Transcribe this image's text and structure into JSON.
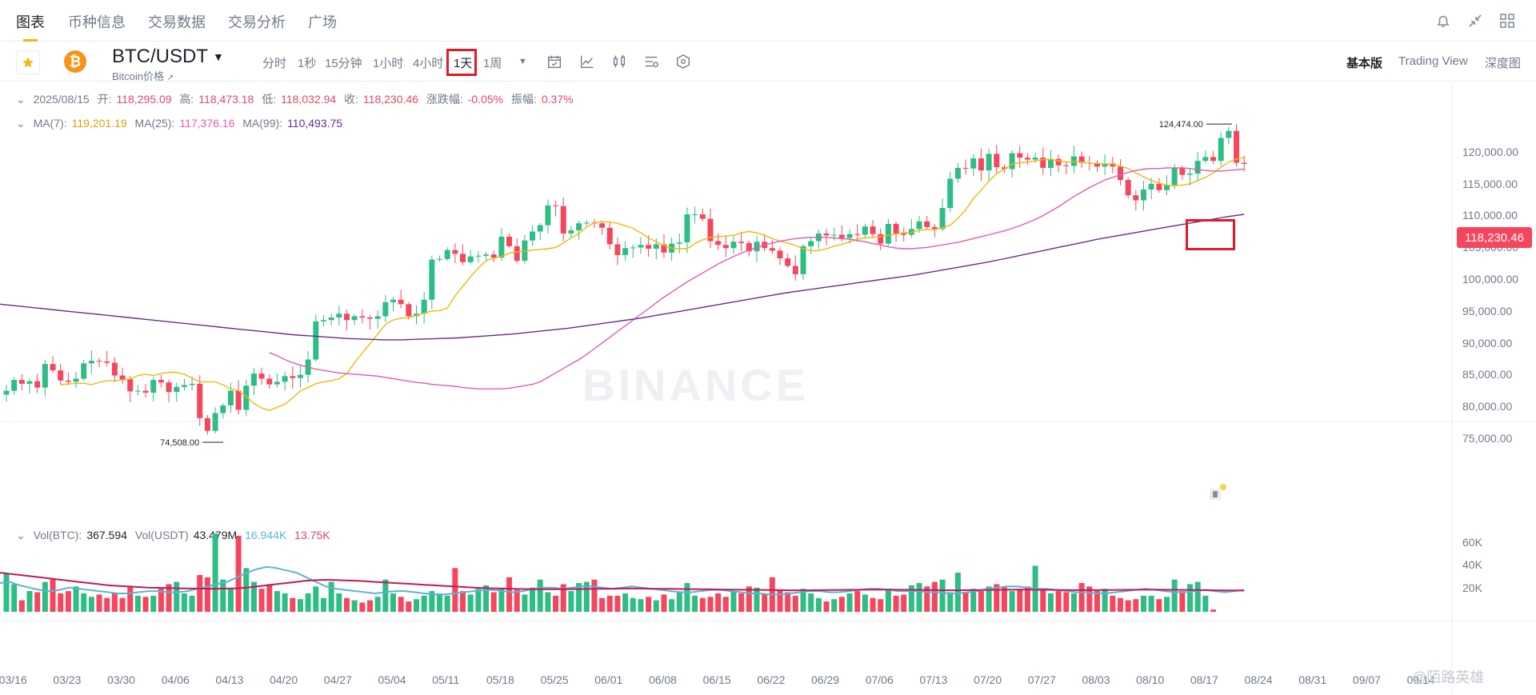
{
  "nav": {
    "tabs": [
      "图表",
      "币种信息",
      "交易数据",
      "交易分析",
      "广场"
    ],
    "active_tab": "图表",
    "icons": [
      "bell-icon",
      "collapse-icon",
      "grid-icon"
    ]
  },
  "symbol": {
    "pair": "BTC/USDT",
    "subtitle": "Bitcoin价格",
    "subtitle_arrow": "↗"
  },
  "intervals": [
    "分时",
    "1秒",
    "15分钟",
    "1小时",
    "4小时",
    "1天",
    "1周"
  ],
  "selected_interval": "1天",
  "views": [
    "基本版",
    "Trading View",
    "深度图"
  ],
  "selected_view": "基本版",
  "ohlc": {
    "date": "2025/08/15",
    "open_label": "开:",
    "open": "118,295.09",
    "high_label": "高:",
    "high": "118,473.18",
    "low_label": "低:",
    "low": "118,032.94",
    "close_label": "收:",
    "close": "118,230.46",
    "change_label": "涨跌幅:",
    "change": "-0.05%",
    "amp_label": "振幅:",
    "amp": "0.37%"
  },
  "ma": {
    "ma7_label": "MA(7):",
    "ma7": "119,201.19",
    "ma25_label": "MA(25):",
    "ma25": "117,376.16",
    "ma99_label": "MA(99):",
    "ma99": "110,493.75"
  },
  "vol": {
    "btc_label": "Vol(BTC):",
    "btc": "367.594",
    "usdt_label": "Vol(USDT)",
    "usdt": "43.479M",
    "v1": "16.944K",
    "v2": "13.75K"
  },
  "last_price": "118,230.46",
  "max_label": "124,474.00",
  "min_label": "74,508.00",
  "watermark": "BINANCE",
  "corner_watermark": "@陌路英雄",
  "colors": {
    "up": "#2ebd85",
    "down": "#f6465d",
    "ma7": "#f0b90b",
    "ma25": "#e05cb0",
    "ma99": "#6a2c8e",
    "vol_ma1": "#5bb5cf",
    "vol_ma2": "#c2185b",
    "accent": "#f0b90b",
    "highlight_box": "#e01a2b"
  },
  "chart_data": {
    "type": "candlestick",
    "y_ticks": [
      "120,000.00",
      "115,000.00",
      "110,000.00",
      "105,000.00",
      "100,000.00",
      "95,000.00",
      "90,000.00",
      "85,000.00",
      "80,000.00",
      "75,000.00"
    ],
    "vol_ticks": [
      "60K",
      "40K",
      "20K"
    ],
    "x_ticks": [
      "03/16",
      "03/23",
      "03/30",
      "04/06",
      "04/13",
      "04/20",
      "04/27",
      "05/04",
      "05/11",
      "05/18",
      "05/25",
      "06/01",
      "06/08",
      "06/15",
      "06/22",
      "06/29",
      "07/06",
      "07/13",
      "07/20",
      "07/27",
      "08/03",
      "08/10",
      "08/17",
      "08/24",
      "08/31",
      "09/07",
      "09/14"
    ],
    "ylim": [
      72000,
      126000
    ],
    "vol_ylim": [
      0,
      75000
    ],
    "closes": [
      82600,
      84300,
      83700,
      84100,
      83100,
      86800,
      85800,
      84200,
      84000,
      84500,
      86900,
      87300,
      87200,
      87000,
      85000,
      84400,
      82500,
      82600,
      82300,
      84300,
      83900,
      82400,
      83200,
      83500,
      83700,
      78300,
      76300,
      79100,
      80300,
      82600,
      79600,
      83400,
      85300,
      84500,
      83600,
      84000,
      84900,
      84600,
      85100,
      87500,
      93500,
      93700,
      94100,
      94700,
      93700,
      94300,
      94100,
      93900,
      94300,
      96500,
      96900,
      96200,
      94300,
      94700,
      96900,
      103200,
      103300,
      104700,
      104100,
      102800,
      103700,
      103800,
      104000,
      103500,
      106800,
      105300,
      103000,
      106200,
      107600,
      108600,
      111700,
      111600,
      107300,
      107800,
      108900,
      109000,
      108900,
      108200,
      105600,
      103900,
      105000,
      105100,
      105500,
      104900,
      105600,
      104300,
      105700,
      105900,
      110300,
      110300,
      109600,
      106100,
      105500,
      105000,
      106000,
      105800,
      104500,
      106000,
      105000,
      104600,
      103400,
      102200,
      100900,
      105300,
      106100,
      107300,
      107000,
      107100,
      106600,
      107200,
      107100,
      108400,
      107200,
      105700,
      108800,
      107300,
      107100,
      108000,
      109200,
      108300,
      108000,
      111300,
      115900,
      117600,
      117500,
      119100,
      117200,
      119800,
      117700,
      117400,
      119900,
      119200,
      118900,
      119200,
      117600,
      119000,
      118000,
      117900,
      119400,
      118400,
      118300,
      117800,
      118300,
      117800,
      115700,
      113300,
      112500,
      114200,
      115100,
      114100,
      114900,
      117600,
      116500,
      116700,
      118700,
      119300,
      118700,
      122300,
      123400,
      118400,
      118230
    ],
    "ma7": [
      83550,
      83662,
      83760,
      83780,
      83560,
      83916,
      84200,
      84200,
      84300,
      84434,
      85000,
      85200,
      85000,
      85300,
      85500,
      85500,
      85200,
      84600,
      84000,
      84000,
      84000,
      83500,
      82900,
      82600,
      81700,
      80600,
      79900,
      79500,
      80000,
      80500,
      81500,
      82600,
      83100,
      83700,
      84000,
      84200,
      84500,
      85300,
      87000,
      88500,
      90000,
      91500,
      93000,
      93700,
      94000,
      94100,
      94400,
      94800,
      95100,
      95200,
      95600,
      97500,
      99000,
      100500,
      101900,
      103000,
      103400,
      103700,
      104200,
      104400,
      104500,
      104700,
      104800,
      104900,
      105100,
      105800,
      106600,
      107300,
      108300,
      109000,
      109200,
      109100,
      108900,
      108500,
      108100,
      107400,
      106600,
      106000,
      105400,
      105000,
      104900,
      104900,
      105700,
      106300,
      106700,
      106800,
      106900,
      107000,
      107400,
      107600,
      107400,
      107000,
      106500,
      106100,
      105800,
      105400,
      104900,
      104600,
      104600,
      104900,
      105300,
      105600,
      106000,
      106400,
      106600,
      106700,
      106800,
      107000,
      107200,
      107400,
      107500,
      107800,
      107900,
      107900,
      108200,
      108600,
      109700,
      111000,
      112800,
      114100,
      115500,
      116700,
      117400,
      118200,
      118400,
      118500,
      118700,
      118900,
      118900,
      118700,
      118500,
      118600,
      118500,
      118300,
      118300,
      118200,
      118200,
      117900,
      117500,
      116800,
      116200,
      115600,
      115200,
      114900,
      114800,
      114900,
      115100,
      115600,
      116100,
      116800,
      117700,
      118500,
      119000,
      119200
    ],
    "ma25": [
      88600,
      88100,
      87500,
      87000,
      86600,
      86300,
      86000,
      85800,
      85600,
      85400,
      85300,
      85200,
      85100,
      85000,
      84900,
      84700,
      84500,
      84300,
      84100,
      83900,
      83800,
      83600,
      83500,
      83400,
      83300,
      83100,
      83000,
      82900,
      82900,
      82900,
      82900,
      83000,
      83200,
      83400,
      83600,
      84000,
      84700,
      85400,
      86100,
      86800,
      87500,
      88300,
      89200,
      90100,
      91000,
      91900,
      92800,
      93700,
      94600,
      95500,
      96400,
      97300,
      98100,
      98900,
      99700,
      100400,
      101100,
      101800,
      102500,
      103100,
      103700,
      104200,
      104700,
      105100,
      105500,
      105800,
      106100,
      106300,
      106500,
      106600,
      106700,
      106700,
      106700,
      106600,
      106500,
      106400,
      106200,
      106000,
      105700,
      105500,
      105200,
      105000,
      104900,
      104900,
      105000,
      105100,
      105300,
      105500,
      105700,
      105900,
      106200,
      106500,
      106800,
      107100,
      107400,
      107700,
      108100,
      108500,
      109000,
      109500,
      110100,
      110800,
      111500,
      112300,
      113100,
      113800,
      114500,
      115100,
      115700,
      116100,
      116500,
      116900,
      117200,
      117400,
      117500,
      117500,
      117600,
      117600,
      117600,
      117500,
      117300,
      117200,
      117100,
      117100,
      117200,
      117300,
      117400
    ],
    "ma99": [
      96200,
      95900,
      95600,
      95300,
      95000,
      94700,
      94400,
      94100,
      93800,
      93500,
      93200,
      92900,
      92600,
      92300,
      92000,
      91700,
      91400,
      91200,
      91000,
      90800,
      90700,
      90600,
      90600,
      90700,
      90800,
      90900,
      91100,
      91300,
      91500,
      91800,
      92100,
      92400,
      92800,
      93200,
      93600,
      94000,
      94500,
      95000,
      95500,
      96000,
      96500,
      97000,
      97500,
      98000,
      98400,
      98800,
      99200,
      99600,
      100000,
      100400,
      100800,
      101300,
      101800,
      102300,
      102800,
      103400,
      104000,
      104600,
      105200,
      105800,
      106400,
      106900,
      107400,
      107900,
      108400,
      108900,
      109400,
      109900,
      110300
    ],
    "volumes": [
      33000,
      24000,
      10000,
      18000,
      17000,
      26000,
      28000,
      16000,
      18000,
      22000,
      16000,
      13000,
      15000,
      12000,
      16000,
      12000,
      22000,
      14000,
      13000,
      14000,
      20000,
      24000,
      26000,
      16000,
      14000,
      32000,
      30000,
      68000,
      28000,
      20000,
      66000,
      38000,
      26000,
      20000,
      24000,
      18000,
      16000,
      12000,
      11000,
      16000,
      22000,
      12000,
      26000,
      16000,
      12000,
      10000,
      8000,
      10000,
      13000,
      28000,
      16000,
      13000,
      9000,
      11000,
      14000,
      18000,
      16000,
      14000,
      38000,
      18000,
      15000,
      20000,
      23000,
      17000,
      20000,
      30000,
      19000,
      15000,
      21000,
      28000,
      17000,
      14000,
      24000,
      18000,
      25000,
      26000,
      28000,
      12000,
      14000,
      14000,
      16000,
      12000,
      11000,
      13000,
      10000,
      15000,
      11000,
      17000,
      25000,
      14000,
      12000,
      13000,
      16000,
      13000,
      18000,
      16000,
      22000,
      21000,
      16000,
      30000,
      19000,
      17000,
      14000,
      20000,
      16000,
      12000,
      9000,
      11000,
      13000,
      16000,
      18000,
      15000,
      12000,
      11000,
      20000,
      14000,
      15000,
      23000,
      25000,
      22000,
      26000,
      28000,
      17000,
      34000,
      17000,
      20000,
      18000,
      22000,
      24000,
      22000,
      18000,
      20000,
      22000,
      40000,
      20000,
      16000,
      18000,
      17000,
      16000,
      25000,
      22000,
      18000,
      20000,
      14000,
      12000,
      10000,
      11000,
      14000,
      14000,
      11000,
      13000,
      28000,
      18000,
      24000,
      26000,
      14000,
      2000
    ],
    "vol_ma1": [
      25000,
      26000,
      23000,
      21000,
      19000,
      18000,
      19000,
      21000,
      20000,
      19000,
      18000,
      17000,
      16000,
      16000,
      17000,
      18000,
      18000,
      17000,
      17000,
      18000,
      20000,
      22000,
      24000,
      26000,
      30000,
      34000,
      37000,
      39000,
      38000,
      36000,
      34000,
      30000,
      26000,
      22000,
      20000,
      19000,
      18000,
      17000,
      16000,
      17000,
      18000,
      18000,
      17000,
      16000,
      15000,
      15000,
      16000,
      17000,
      18000,
      19000,
      19000,
      18000,
      17000,
      18000,
      20000,
      21000,
      21000,
      20000,
      21000,
      22000,
      22000,
      21000,
      20000,
      21000,
      22000,
      21000,
      20000,
      19000,
      18000,
      17000,
      17000,
      18000,
      19000,
      19000,
      18000,
      17000,
      16000,
      16000,
      15000,
      15000,
      16000,
      17000,
      18000,
      18000,
      17000,
      17000,
      18000,
      19000,
      20000,
      20000,
      19000,
      18000,
      18000,
      18000,
      17000,
      17000,
      16000,
      16000,
      17000,
      18000,
      20000,
      21000,
      22000,
      22000,
      21000,
      20000,
      20000,
      19000,
      18000,
      17000,
      17000,
      16000,
      16000,
      17000,
      18000,
      19000,
      20000,
      19000,
      18000,
      17000,
      17000,
      18000,
      19000,
      18000,
      17000,
      18000,
      19000
    ],
    "vol_ma2": [
      34000,
      33000,
      32000,
      31000,
      30000,
      29000,
      28000,
      27000,
      26000,
      25000,
      24000,
      23000,
      22500,
      22000,
      21500,
      21000,
      20800,
      20600,
      20400,
      20300,
      20200,
      20100,
      20100,
      20200,
      20400,
      21000,
      22000,
      23000,
      24000,
      25000,
      26000,
      27000,
      27500,
      27800,
      27600,
      27300,
      27000,
      26500,
      26000,
      25500,
      25000,
      24500,
      24000,
      23500,
      23000,
      22500,
      22000,
      21500,
      21000,
      20700,
      20400,
      20200,
      20000,
      19800,
      19700,
      19600,
      19600,
      19600,
      19700,
      19800,
      19900,
      20000,
      20100,
      20200,
      20200,
      20200,
      20100,
      20000,
      19900,
      19800,
      19700,
      19600,
      19500,
      19400,
      19300,
      19200,
      19100,
      19000,
      18900,
      18800,
      18700,
      18700,
      18700,
      18800,
      18900,
      19000,
      19100,
      19200,
      19300,
      19300,
      19300,
      19200,
      19100,
      19000,
      18900,
      18800,
      18700,
      18700,
      18800,
      18900,
      19000,
      19100,
      19200,
      19300,
      19300,
      19200,
      19100,
      19000,
      18900,
      18800,
      18800,
      18800,
      18900,
      19000,
      19100,
      19200,
      19300,
      19300,
      19200,
      19100,
      19000,
      18900,
      18800,
      18700,
      18600,
      18600,
      18500
    ]
  }
}
